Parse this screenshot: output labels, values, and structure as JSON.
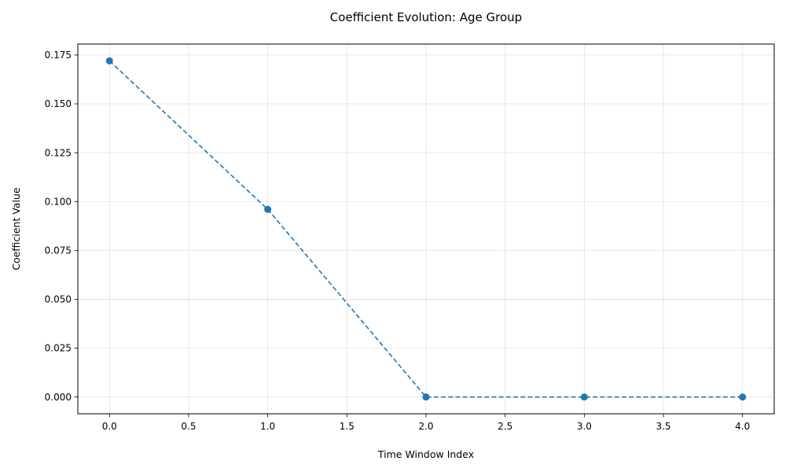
{
  "chart_data": {
    "type": "line",
    "title": "Coefficient Evolution: Age Group",
    "xlabel": "Time Window Index",
    "ylabel": "Coefficient Value",
    "xlim": [
      -0.2,
      4.2
    ],
    "ylim": [
      -0.0086,
      0.1806
    ],
    "x_ticks": [
      0.0,
      0.5,
      1.0,
      1.5,
      2.0,
      2.5,
      3.0,
      3.5,
      4.0
    ],
    "x_tick_labels": [
      "0.0",
      "0.5",
      "1.0",
      "1.5",
      "2.0",
      "2.5",
      "3.0",
      "3.5",
      "4.0"
    ],
    "y_ticks": [
      0.0,
      0.025,
      0.05,
      0.075,
      0.1,
      0.125,
      0.15,
      0.175
    ],
    "y_tick_labels": [
      "0.000",
      "0.025",
      "0.050",
      "0.075",
      "0.100",
      "0.125",
      "0.150",
      "0.175"
    ],
    "grid": true,
    "legend": "none",
    "series": [
      {
        "x": [
          0,
          1,
          2,
          3,
          4
        ],
        "values": [
          0.172,
          0.096,
          0.0,
          0.0,
          0.0
        ],
        "color": "#1f77b4",
        "line_style": "dashed",
        "marker": "circle"
      }
    ]
  }
}
